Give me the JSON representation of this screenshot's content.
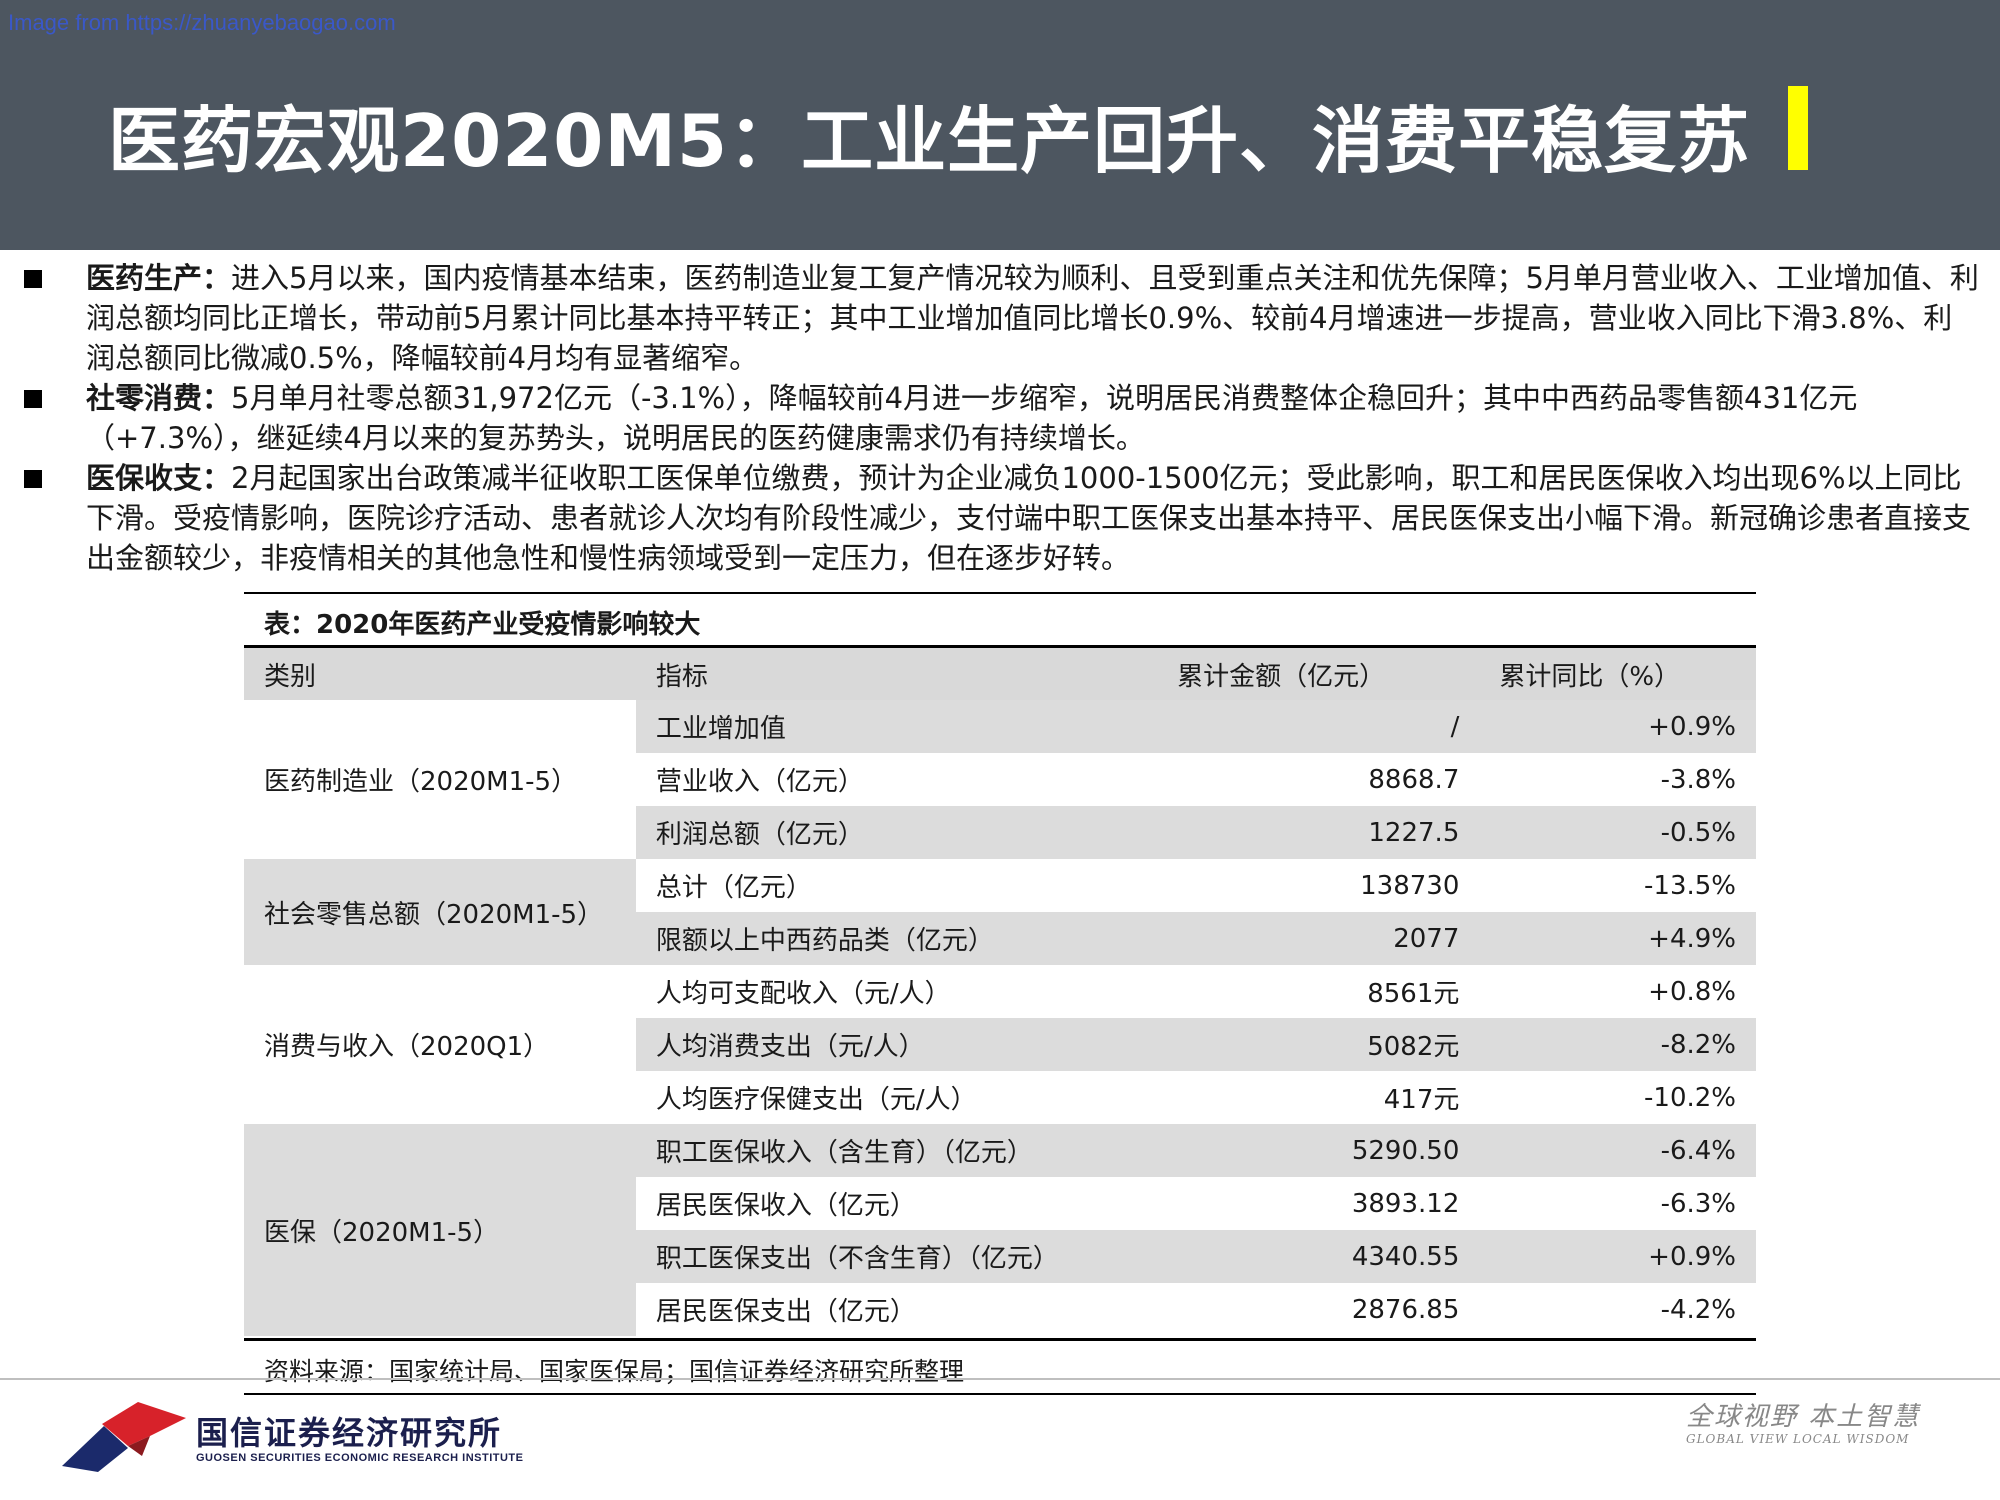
{
  "watermark": "Image from https://zhuanyebaogao.com",
  "title": "医药宏观2020M5：工业生产回升、消费平稳复苏",
  "accent_color": "#ffff00",
  "header_color": "#4d5660",
  "bullets": [
    {
      "label": "医药生产：",
      "text": "进入5月以来，国内疫情基本结束，医药制造业复工复产情况较为顺利、且受到重点关注和优先保障；5月单月营业收入、工业增加值、利润总额均同比正增长，带动前5月累计同比基本持平转正；其中工业增加值同比增长0.9%、较前4月增速进一步提高，营业收入同比下滑3.8%、利润总额同比微减0.5%，降幅较前4月均有显著缩窄。"
    },
    {
      "label": "社零消费：",
      "text": "5月单月社零总额31,972亿元（-3.1%），降幅较前4月进一步缩窄，说明居民消费整体企稳回升；其中中西药品零售额431亿元（+7.3%），继延续4月以来的复苏势头，说明居民的医药健康需求仍有持续增长。"
    },
    {
      "label": "医保收支：",
      "text": "2月起国家出台政策减半征收职工医保单位缴费，预计为企业减负1000-1500亿元；受此影响，职工和居民医保收入均出现6%以上同比下滑。受疫情影响，医院诊疗活动、患者就诊人次均有阶段性减少，支付端中职工医保支出基本持平、居民医保支出小幅下滑。新冠确诊患者直接支出金额较少，非疫情相关的其他急性和慢性病领域受到一定压力，但在逐步好转。"
    }
  ],
  "table": {
    "caption": "表：2020年医药产业受疫情影响较大",
    "headers": [
      "类别",
      "指标",
      "累计金额（亿元）",
      "累计同比（%）"
    ],
    "groups": [
      {
        "category": "医药制造业（2020M1-5）",
        "rows": [
          {
            "indicator": "工业增加值",
            "amount": "/",
            "yoy": "+0.9%"
          },
          {
            "indicator": "营业收入（亿元）",
            "amount": "8868.7",
            "yoy": "-3.8%"
          },
          {
            "indicator": "利润总额（亿元）",
            "amount": "1227.5",
            "yoy": "-0.5%"
          }
        ]
      },
      {
        "category": "社会零售总额（2020M1-5）",
        "rows": [
          {
            "indicator": "总计（亿元）",
            "amount": "138730",
            "yoy": "-13.5%"
          },
          {
            "indicator": "限额以上中西药品类（亿元）",
            "amount": "2077",
            "yoy": "+4.9%"
          }
        ]
      },
      {
        "category": "消费与收入（2020Q1）",
        "rows": [
          {
            "indicator": "人均可支配收入（元/人）",
            "amount": "8561元",
            "yoy": "+0.8%"
          },
          {
            "indicator": "人均消费支出（元/人）",
            "amount": "5082元",
            "yoy": "-8.2%"
          },
          {
            "indicator": "人均医疗保健支出（元/人）",
            "amount": "417元",
            "yoy": "-10.2%"
          }
        ]
      },
      {
        "category": "医保（2020M1-5）",
        "rows": [
          {
            "indicator": "职工医保收入（含生育）（亿元）",
            "amount": "5290.50",
            "yoy": "-6.4%"
          },
          {
            "indicator": "居民医保收入（亿元）",
            "amount": "3893.12",
            "yoy": "-6.3%"
          },
          {
            "indicator": "职工医保支出（不含生育）（亿元）",
            "amount": "4340.55",
            "yoy": "+0.9%"
          },
          {
            "indicator": "居民医保支出（亿元）",
            "amount": "2876.85",
            "yoy": "-4.2%"
          }
        ]
      }
    ],
    "source": "资料来源：国家统计局、国家医保局；国信证券经济研究所整理"
  },
  "footer": {
    "logo_cn": "国信证券经济研究所",
    "logo_en": "GUOSEN SECURITIES ECONOMIC RESEARCH INSTITUTE",
    "slogan_cn": "全球视野 本土智慧",
    "slogan_en": "GLOBAL VIEW LOCAL WISDOM"
  }
}
